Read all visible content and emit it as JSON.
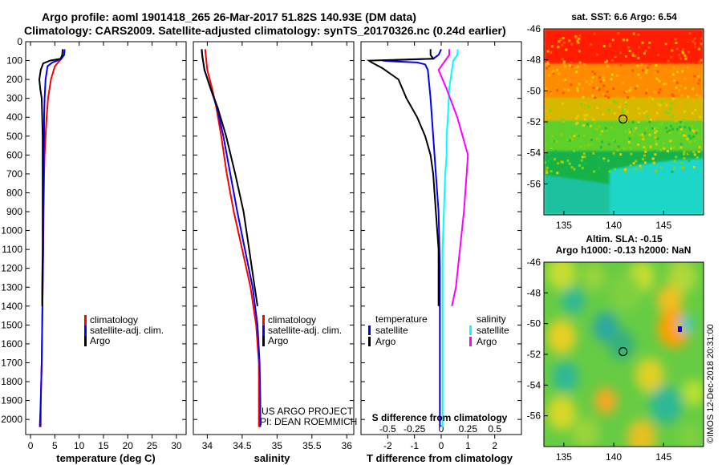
{
  "header": {
    "line1": "Argo profile: aoml 1901418_265 26-Mar-2017 51.82S 140.93E (DM data)",
    "line2": "Climatology: CARS2009. Satellite-adjusted climatology: synTS_20170326.nc (0.24d earlier)"
  },
  "colors": {
    "climatology": "#ff0000",
    "satellite": "#0000ff",
    "argo": "#000000",
    "satellite_salinity": "#00ffff",
    "argo_salinity": "#ff00ff"
  },
  "legend_labels": {
    "climatology": "climatology",
    "satellite_adj": "satellite-adj. clim.",
    "argo": "Argo",
    "temperature": "temperature",
    "salinity": "salinity",
    "satellite": "satellite"
  },
  "credit": {
    "line1": "US ARGO PROJECT",
    "line2": "PI: DEAN ROEMMICH"
  },
  "imos_stamp": "©IMOS 12-Dec-2018 20:31:00",
  "chart_data": [
    {
      "id": "temperature",
      "type": "line",
      "xlabel": "temperature (deg C)",
      "ylabel": "",
      "xlim": [
        -1,
        32
      ],
      "ylim": [
        2080,
        0
      ],
      "xticks": [
        0,
        5,
        10,
        15,
        20,
        25,
        30
      ],
      "yticks": [
        0,
        100,
        200,
        300,
        400,
        500,
        600,
        700,
        800,
        900,
        1000,
        1100,
        1200,
        1300,
        1400,
        1500,
        1600,
        1700,
        1800,
        1900,
        2000
      ],
      "series": [
        {
          "name": "climatology",
          "color": "#ff0000",
          "points": [
            [
              7.0,
              40
            ],
            [
              6.9,
              70
            ],
            [
              6.2,
              95
            ],
            [
              5.0,
              130
            ],
            [
              4.2,
              200
            ],
            [
              3.6,
              300
            ],
            [
              3.3,
              400
            ],
            [
              3.1,
              500
            ],
            [
              2.9,
              600
            ],
            [
              2.8,
              700
            ],
            [
              2.7,
              900
            ],
            [
              2.6,
              1100
            ],
            [
              2.5,
              1300
            ],
            [
              2.4,
              1500
            ],
            [
              2.3,
              1700
            ],
            [
              2.1,
              1900
            ],
            [
              2.1,
              2040
            ]
          ]
        },
        {
          "name": "satellite-adj. clim.",
          "color": "#0000ff",
          "points": [
            [
              7.0,
              40
            ],
            [
              6.9,
              70
            ],
            [
              6.3,
              92
            ],
            [
              4.5,
              110
            ],
            [
              3.5,
              130
            ],
            [
              3.1,
              200
            ],
            [
              2.9,
              300
            ],
            [
              2.8,
              400
            ],
            [
              2.8,
              500
            ],
            [
              2.7,
              600
            ],
            [
              2.7,
              700
            ],
            [
              2.6,
              900
            ],
            [
              2.6,
              1100
            ],
            [
              2.5,
              1300
            ],
            [
              2.4,
              1500
            ],
            [
              2.3,
              1700
            ],
            [
              2.1,
              1900
            ],
            [
              1.9,
              2040
            ]
          ]
        },
        {
          "name": "Argo",
          "color": "#000000",
          "points": [
            [
              6.6,
              40
            ],
            [
              6.5,
              70
            ],
            [
              6.2,
              90
            ],
            [
              4.0,
              100
            ],
            [
              2.6,
              115
            ],
            [
              2.1,
              150
            ],
            [
              1.8,
              200
            ],
            [
              2.0,
              250
            ],
            [
              2.3,
              300
            ],
            [
              2.4,
              400
            ],
            [
              2.5,
              500
            ],
            [
              2.5,
              600
            ],
            [
              2.5,
              700
            ],
            [
              2.5,
              900
            ],
            [
              2.5,
              1100
            ],
            [
              2.4,
              1300
            ],
            [
              2.4,
              1400
            ]
          ]
        }
      ],
      "legend": [
        "climatology",
        "satellite-adj. clim.",
        "Argo"
      ],
      "legend_position": "lower-right"
    },
    {
      "id": "salinity",
      "type": "line",
      "xlabel": "salinity",
      "ylabel": "",
      "xlim": [
        33.8,
        36.1
      ],
      "ylim": [
        2080,
        0
      ],
      "xticks": [
        34,
        34.5,
        35,
        35.5,
        36
      ],
      "xticklabels": [
        "34",
        "34.5",
        "35",
        "35.5",
        "36"
      ],
      "series": [
        {
          "name": "climatology",
          "color": "#ff0000",
          "points": [
            [
              33.97,
              40
            ],
            [
              33.98,
              80
            ],
            [
              34.0,
              150
            ],
            [
              34.07,
              250
            ],
            [
              34.13,
              350
            ],
            [
              34.2,
              500
            ],
            [
              34.28,
              700
            ],
            [
              34.38,
              900
            ],
            [
              34.5,
              1100
            ],
            [
              34.62,
              1300
            ],
            [
              34.7,
              1500
            ],
            [
              34.74,
              1700
            ],
            [
              34.74,
              1900
            ],
            [
              34.74,
              2040
            ]
          ]
        },
        {
          "name": "satellite-adj. clim.",
          "color": "#0000ff",
          "points": [
            [
              33.92,
              40
            ],
            [
              33.93,
              80
            ],
            [
              33.96,
              150
            ],
            [
              34.05,
              250
            ],
            [
              34.14,
              350
            ],
            [
              34.23,
              500
            ],
            [
              34.33,
              700
            ],
            [
              34.43,
              900
            ],
            [
              34.54,
              1100
            ],
            [
              34.65,
              1300
            ],
            [
              34.72,
              1500
            ],
            [
              34.75,
              1700
            ],
            [
              34.76,
              1900
            ],
            [
              34.76,
              2040
            ]
          ]
        },
        {
          "name": "Argo",
          "color": "#000000",
          "points": [
            [
              33.92,
              40
            ],
            [
              33.93,
              80
            ],
            [
              33.96,
              150
            ],
            [
              34.05,
              250
            ],
            [
              34.15,
              350
            ],
            [
              34.27,
              500
            ],
            [
              34.4,
              700
            ],
            [
              34.52,
              900
            ],
            [
              34.6,
              1100
            ],
            [
              34.68,
              1300
            ],
            [
              34.72,
              1400
            ]
          ]
        }
      ],
      "legend": [
        "climatology",
        "satellite-adj. clim.",
        "Argo"
      ],
      "legend_position": "lower-right"
    },
    {
      "id": "difference",
      "type": "line",
      "xlabel": "T difference from climatology",
      "ylabel": "",
      "xlim": [
        -3.0,
        3.0
      ],
      "ylim": [
        2080,
        0
      ],
      "xticks": [
        -2,
        -1,
        0,
        1,
        2
      ],
      "xticklabels": [
        "-2",
        "-1",
        "0",
        "1",
        "2"
      ],
      "top_axis_label": "S difference from climatology",
      "top_xticks": [
        -0.5,
        -0.25,
        0,
        0.25,
        0.5
      ],
      "top_xticklabels": [
        "-0.5",
        "-0.25",
        "0",
        "0.25",
        "0.5"
      ],
      "series": [
        {
          "name": "temperature satellite",
          "color": "#0000ff",
          "points": [
            [
              0.0,
              40
            ],
            [
              -0.1,
              70
            ],
            [
              -0.3,
              90
            ],
            [
              -2.2,
              100
            ],
            [
              -1.7,
              105
            ],
            [
              -0.9,
              110
            ],
            [
              -0.6,
              120
            ],
            [
              -0.5,
              150
            ],
            [
              -0.4,
              300
            ],
            [
              -0.3,
              500
            ],
            [
              -0.2,
              700
            ],
            [
              -0.1,
              900
            ],
            [
              -0.05,
              1200
            ],
            [
              -0.05,
              1500
            ],
            [
              -0.05,
              1800
            ],
            [
              -0.05,
              2040
            ]
          ]
        },
        {
          "name": "temperature Argo",
          "color": "#000000",
          "points": [
            [
              -0.4,
              40
            ],
            [
              -0.4,
              70
            ],
            [
              -0.3,
              90
            ],
            [
              -2.7,
              100
            ],
            [
              -2.6,
              110
            ],
            [
              -2.2,
              140
            ],
            [
              -1.6,
              200
            ],
            [
              -1.3,
              300
            ],
            [
              -0.9,
              400
            ],
            [
              -0.6,
              500
            ],
            [
              -0.4,
              600
            ],
            [
              -0.3,
              700
            ],
            [
              -0.2,
              900
            ],
            [
              -0.1,
              1100
            ],
            [
              -0.1,
              1300
            ],
            [
              -0.1,
              1400
            ]
          ]
        },
        {
          "name": "salinity satellite",
          "color": "#00ffff",
          "points": [
            [
              0.62,
              40
            ],
            [
              0.6,
              70
            ],
            [
              0.45,
              100
            ],
            [
              0.4,
              150
            ],
            [
              0.3,
              250
            ],
            [
              0.25,
              400
            ],
            [
              0.2,
              500
            ],
            [
              0.2,
              600
            ],
            [
              0.15,
              700
            ],
            [
              0.1,
              900
            ],
            [
              0.05,
              1100
            ],
            [
              0.05,
              1300
            ],
            [
              0.05,
              1500
            ],
            [
              0.05,
              1700
            ],
            [
              0.05,
              2040
            ]
          ]
        },
        {
          "name": "salinity Argo",
          "color": "#ff00ff",
          "points": [
            [
              0.3,
              40
            ],
            [
              0.3,
              70
            ],
            [
              0.1,
              110
            ],
            [
              -0.1,
              150
            ],
            [
              0.2,
              250
            ],
            [
              0.6,
              400
            ],
            [
              0.8,
              500
            ],
            [
              1.0,
              600
            ],
            [
              0.95,
              700
            ],
            [
              0.85,
              900
            ],
            [
              0.7,
              1100
            ],
            [
              0.55,
              1300
            ],
            [
              0.4,
              1400
            ]
          ]
        }
      ],
      "legend_temperature": [
        "satellite",
        "Argo"
      ],
      "legend_salinity": [
        "satellite",
        "Argo"
      ],
      "legend_position": "lower"
    },
    {
      "id": "sst_map",
      "type": "heatmap",
      "title": "sat. SST: 6.6 Argo: 6.54",
      "xlim": [
        133,
        149
      ],
      "ylim": [
        -58,
        -46
      ],
      "xticks": [
        135,
        140,
        145
      ],
      "yticks": [
        -46,
        -48,
        -50,
        -52,
        -54,
        -56
      ],
      "profile_marker": [
        140.93,
        -51.82
      ]
    },
    {
      "id": "sla_map",
      "type": "heatmap",
      "title": "Altim. SLA: -0.15",
      "subtitle": "Argo h1000: -0.13 h2000: NaN",
      "xlim": [
        133,
        149
      ],
      "ylim": [
        -58,
        -46
      ],
      "xticks": [
        135,
        140,
        145
      ],
      "yticks": [
        -46,
        -48,
        -50,
        -52,
        -54,
        -56
      ],
      "profile_marker": [
        140.93,
        -51.82
      ]
    }
  ]
}
